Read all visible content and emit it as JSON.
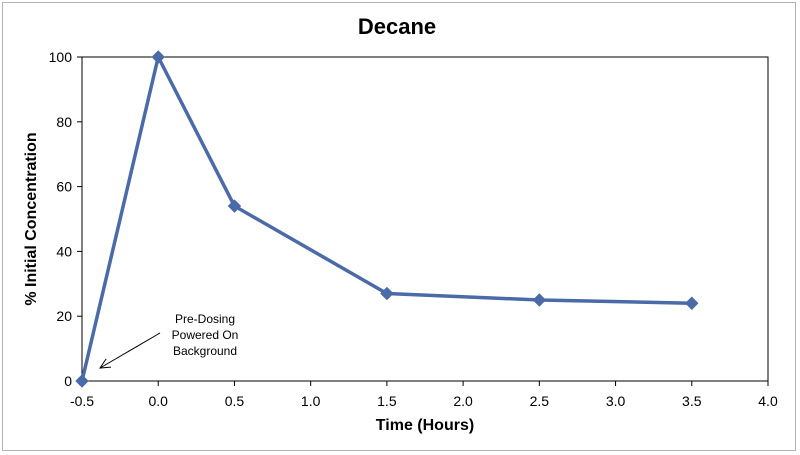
{
  "chart_data": {
    "type": "line",
    "title": "Decane",
    "xlabel": "Time (Hours)",
    "ylabel": "% Initial Concentration",
    "xlim": [
      -0.5,
      4.0
    ],
    "ylim": [
      0,
      100
    ],
    "x_ticks": [
      "-0.5",
      "0.0",
      "0.5",
      "1.0",
      "1.5",
      "2.0",
      "2.5",
      "3.0",
      "3.5",
      "4.0"
    ],
    "y_ticks": [
      "0",
      "20",
      "40",
      "60",
      "80",
      "100"
    ],
    "grid": false,
    "legend": "none",
    "series": [
      {
        "color": "#4a6aa8",
        "x": [
          -0.5,
          0.0,
          0.5,
          1.5,
          2.5,
          3.5
        ],
        "y": [
          0,
          100,
          54,
          27,
          25,
          24
        ]
      }
    ],
    "annotation": {
      "lines": [
        "Pre-Dosing",
        "Powered On",
        "Background"
      ],
      "points_to": [
        -0.5,
        0
      ]
    }
  }
}
